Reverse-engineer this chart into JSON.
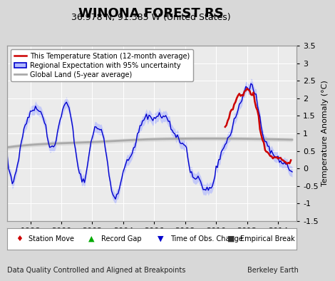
{
  "title": "WINONA FOREST RS",
  "subtitle": "36.978 N, 91.385 W (United States)",
  "ylabel": "Temperature Anomaly (°C)",
  "xlabel_note": "Data Quality Controlled and Aligned at Breakpoints",
  "attribution": "Berkeley Earth",
  "xlim": [
    1996.5,
    2015.2
  ],
  "ylim": [
    -1.5,
    3.5
  ],
  "yticks": [
    -1.5,
    -1.0,
    -0.5,
    0.0,
    0.5,
    1.0,
    1.5,
    2.0,
    2.5,
    3.0,
    3.5
  ],
  "xticks": [
    1998,
    2000,
    2002,
    2004,
    2006,
    2008,
    2010,
    2012,
    2014
  ],
  "blue_line_color": "#0000cc",
  "blue_fill_color": "#b0b8ff",
  "red_line_color": "#cc0000",
  "gray_line_color": "#aaaaaa",
  "gray_fill_color": "#cccccc",
  "background_color": "#ebebeb",
  "grid_color": "#ffffff",
  "fig_bg_color": "#d8d8d8",
  "title_fontsize": 13,
  "subtitle_fontsize": 9,
  "axis_fontsize": 8,
  "tick_fontsize": 8
}
